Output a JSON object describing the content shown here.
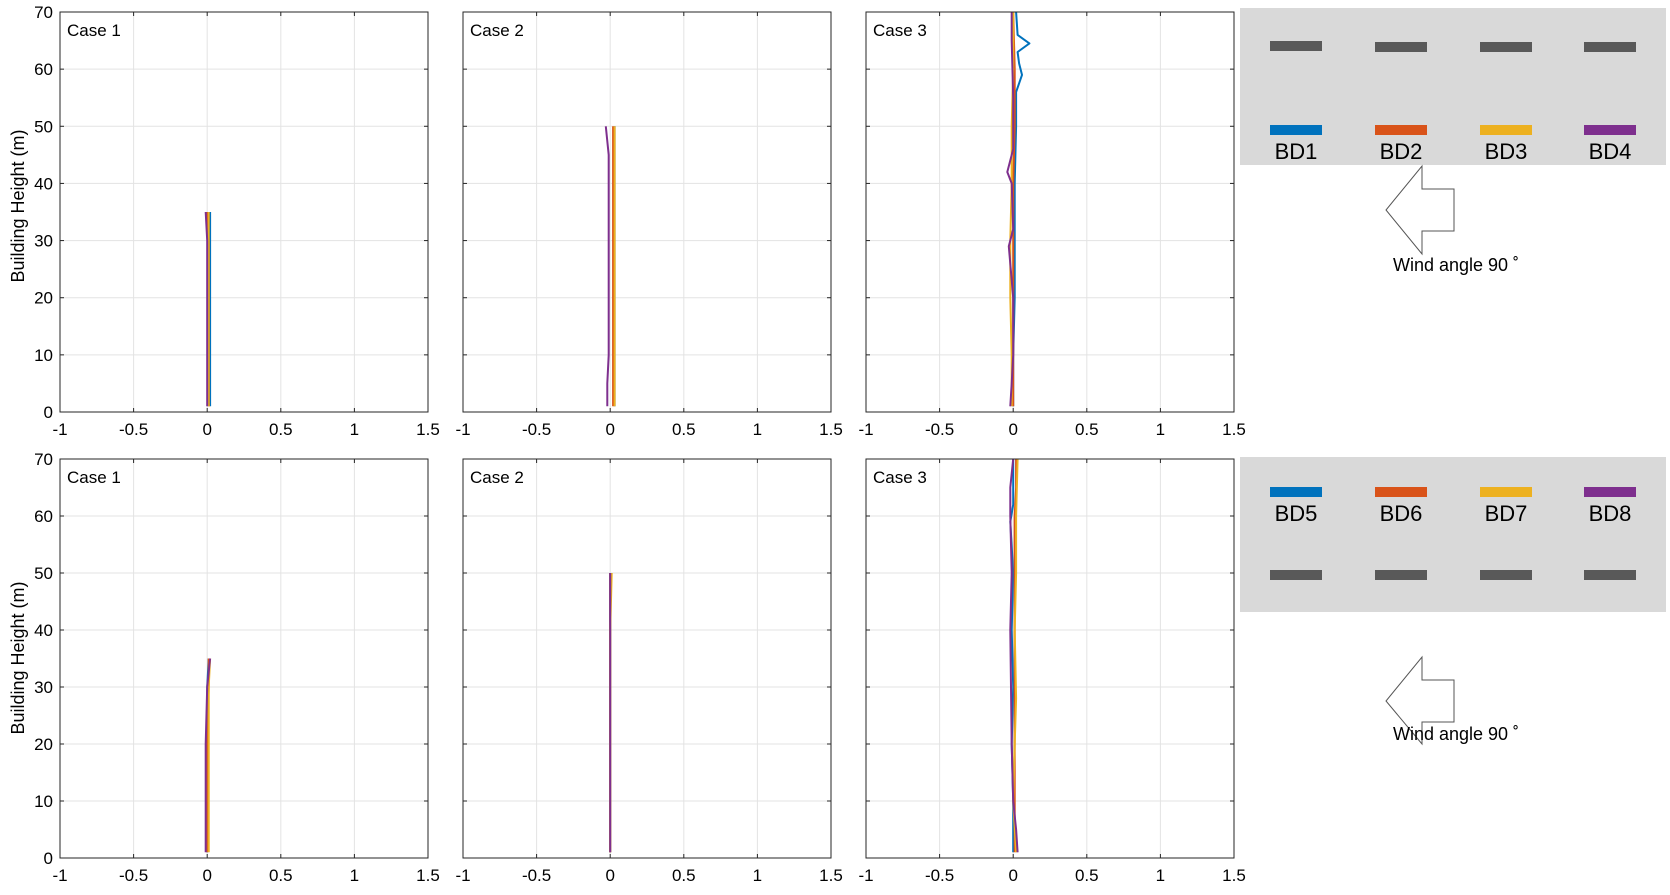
{
  "colors": {
    "bd1": "#0072BD",
    "bd2": "#D95319",
    "bd3": "#EDB120",
    "bd4": "#7E2F8E",
    "building_gray": "#595959",
    "panel_bg": "#d9d9d9"
  },
  "figure": {
    "ylabel": "Building Height (m)",
    "xticks": [
      "-1",
      "-0.5",
      "0",
      "0.5",
      "1",
      "1.5"
    ],
    "yticks": [
      "0",
      "10",
      "20",
      "30",
      "40",
      "50",
      "60",
      "70"
    ]
  },
  "rows": [
    {
      "diagram": {
        "labels": [
          "BD1",
          "BD2",
          "BD3",
          "BD4"
        ],
        "wind_text": "Wind angle 90 ˚"
      }
    },
    {
      "diagram": {
        "labels": [
          "BD5",
          "BD6",
          "BD7",
          "BD8"
        ],
        "wind_text": "Wind angle 90 ˚"
      }
    }
  ],
  "chart_data": [
    {
      "type": "line",
      "title": "Case 1",
      "ylabel": "Building Height (m)",
      "xlim": [
        -1,
        1.5
      ],
      "ylim": [
        0,
        70
      ],
      "grid": true,
      "series": [
        {
          "name": "BD1",
          "color": "#0072BD",
          "points": [
            [
              0.02,
              1
            ],
            [
              0.02,
              10
            ],
            [
              0.02,
              20
            ],
            [
              0.02,
              30
            ],
            [
              0.02,
              35
            ]
          ]
        },
        {
          "name": "BD2",
          "color": "#D95319",
          "points": [
            [
              0.01,
              1
            ],
            [
              0.01,
              10
            ],
            [
              0.01,
              20
            ],
            [
              0.01,
              30
            ],
            [
              0.0,
              35
            ]
          ]
        },
        {
          "name": "BD3",
          "color": "#EDB120",
          "points": [
            [
              0.01,
              1
            ],
            [
              0.01,
              10
            ],
            [
              0.01,
              20
            ],
            [
              0.01,
              30
            ],
            [
              0.01,
              35
            ]
          ]
        },
        {
          "name": "BD4",
          "color": "#7E2F8E",
          "points": [
            [
              0.0,
              1
            ],
            [
              0.0,
              10
            ],
            [
              0.0,
              20
            ],
            [
              0.0,
              30
            ],
            [
              -0.01,
              35
            ]
          ]
        }
      ]
    },
    {
      "type": "line",
      "title": "Case 2",
      "ylabel": "Building Height (m)",
      "xlim": [
        -1,
        1.5
      ],
      "ylim": [
        0,
        70
      ],
      "grid": true,
      "series": [
        {
          "name": "BD1",
          "color": "#0072BD",
          "points": [
            [
              0.03,
              1
            ],
            [
              0.03,
              10
            ],
            [
              0.03,
              20
            ],
            [
              0.03,
              30
            ],
            [
              0.03,
              40
            ],
            [
              0.03,
              50
            ]
          ]
        },
        {
          "name": "BD2",
          "color": "#D95319",
          "points": [
            [
              0.02,
              1
            ],
            [
              0.02,
              10
            ],
            [
              0.02,
              20
            ],
            [
              0.02,
              30
            ],
            [
              0.02,
              40
            ],
            [
              0.02,
              50
            ]
          ]
        },
        {
          "name": "BD3",
          "color": "#EDB120",
          "points": [
            [
              0.03,
              1
            ],
            [
              0.03,
              10
            ],
            [
              0.03,
              20
            ],
            [
              0.03,
              30
            ],
            [
              0.03,
              40
            ],
            [
              0.03,
              50
            ]
          ]
        },
        {
          "name": "BD4",
          "color": "#7E2F8E",
          "points": [
            [
              -0.02,
              1
            ],
            [
              -0.02,
              5
            ],
            [
              -0.01,
              10
            ],
            [
              -0.01,
              20
            ],
            [
              -0.01,
              30
            ],
            [
              -0.01,
              40
            ],
            [
              -0.01,
              45
            ],
            [
              -0.03,
              50
            ]
          ]
        }
      ]
    },
    {
      "type": "line",
      "title": "Case 3",
      "ylabel": "Building Height (m)",
      "xlim": [
        -1,
        1.5
      ],
      "ylim": [
        0,
        70
      ],
      "grid": true,
      "series": [
        {
          "name": "BD1",
          "color": "#0072BD",
          "points": [
            [
              0.0,
              1
            ],
            [
              0.0,
              10
            ],
            [
              0.01,
              20
            ],
            [
              0.01,
              30
            ],
            [
              0.01,
              40
            ],
            [
              0.02,
              50
            ],
            [
              0.02,
              56
            ],
            [
              0.06,
              59
            ],
            [
              0.04,
              61
            ],
            [
              0.03,
              63
            ],
            [
              0.11,
              64.5
            ],
            [
              0.03,
              66
            ],
            [
              0.02,
              70
            ]
          ]
        },
        {
          "name": "BD2",
          "color": "#D95319",
          "points": [
            [
              0.0,
              1
            ],
            [
              0.0,
              10
            ],
            [
              0.0,
              20
            ],
            [
              0.0,
              30
            ],
            [
              0.0,
              40
            ],
            [
              0.01,
              50
            ],
            [
              0.01,
              60
            ],
            [
              0.0,
              70
            ]
          ]
        },
        {
          "name": "BD3",
          "color": "#EDB120",
          "points": [
            [
              -0.01,
              1
            ],
            [
              -0.01,
              10
            ],
            [
              -0.02,
              20
            ],
            [
              -0.02,
              30
            ],
            [
              -0.01,
              40
            ],
            [
              -0.01,
              50
            ],
            [
              0.0,
              60
            ],
            [
              0.0,
              70
            ]
          ]
        },
        {
          "name": "BD4",
          "color": "#7E2F8E",
          "points": [
            [
              -0.02,
              1
            ],
            [
              -0.01,
              5
            ],
            [
              0.0,
              10
            ],
            [
              0.0,
              20
            ],
            [
              -0.03,
              29
            ],
            [
              0.0,
              32
            ],
            [
              -0.01,
              40
            ],
            [
              -0.04,
              42
            ],
            [
              0.0,
              46
            ],
            [
              0.0,
              55
            ],
            [
              -0.01,
              65
            ],
            [
              -0.01,
              70
            ]
          ]
        }
      ]
    },
    {
      "type": "line",
      "title": "Case 1",
      "ylabel": "Building Height (m)",
      "xlim": [
        -1,
        1.5
      ],
      "ylim": [
        0,
        70
      ],
      "grid": true,
      "series": [
        {
          "name": "BD5",
          "color": "#0072BD",
          "points": [
            [
              0.0,
              1
            ],
            [
              0.0,
              10
            ],
            [
              0.0,
              20
            ],
            [
              0.0,
              30
            ],
            [
              0.01,
              35
            ]
          ]
        },
        {
          "name": "BD6",
          "color": "#D95319",
          "points": [
            [
              0.0,
              1
            ],
            [
              0.0,
              10
            ],
            [
              0.0,
              20
            ],
            [
              0.01,
              30
            ],
            [
              0.01,
              35
            ]
          ]
        },
        {
          "name": "BD7",
          "color": "#EDB120",
          "points": [
            [
              0.01,
              1
            ],
            [
              0.01,
              10
            ],
            [
              0.01,
              20
            ],
            [
              0.01,
              30
            ],
            [
              0.02,
              35
            ]
          ]
        },
        {
          "name": "BD8",
          "color": "#7E2F8E",
          "points": [
            [
              -0.01,
              1
            ],
            [
              -0.01,
              10
            ],
            [
              -0.01,
              20
            ],
            [
              0.0,
              30
            ],
            [
              0.02,
              35
            ]
          ]
        }
      ]
    },
    {
      "type": "line",
      "title": "Case 2",
      "ylabel": "Building Height (m)",
      "xlim": [
        -1,
        1.5
      ],
      "ylim": [
        0,
        70
      ],
      "grid": true,
      "series": [
        {
          "name": "BD5",
          "color": "#0072BD",
          "points": [
            [
              0.0,
              1
            ],
            [
              0.0,
              10
            ],
            [
              0.0,
              20
            ],
            [
              0.0,
              30
            ],
            [
              0.0,
              40
            ],
            [
              0.0,
              50
            ]
          ]
        },
        {
          "name": "BD6",
          "color": "#D95319",
          "points": [
            [
              0.0,
              1
            ],
            [
              0.0,
              10
            ],
            [
              0.0,
              20
            ],
            [
              0.0,
              30
            ],
            [
              0.0,
              40
            ],
            [
              0.0,
              50
            ]
          ]
        },
        {
          "name": "BD7",
          "color": "#EDB120",
          "points": [
            [
              0.0,
              1
            ],
            [
              0.0,
              10
            ],
            [
              0.0,
              20
            ],
            [
              0.0,
              30
            ],
            [
              0.0,
              40
            ],
            [
              0.01,
              50
            ]
          ]
        },
        {
          "name": "BD8",
          "color": "#7E2F8E",
          "points": [
            [
              0.0,
              1
            ],
            [
              0.0,
              10
            ],
            [
              0.0,
              20
            ],
            [
              0.0,
              30
            ],
            [
              0.0,
              40
            ],
            [
              0.0,
              50
            ]
          ]
        }
      ]
    },
    {
      "type": "line",
      "title": "Case 3",
      "ylabel": "Building Height (m)",
      "xlim": [
        -1,
        1.5
      ],
      "ylim": [
        0,
        70
      ],
      "grid": true,
      "series": [
        {
          "name": "BD5",
          "color": "#0072BD",
          "points": [
            [
              0.0,
              1
            ],
            [
              0.0,
              10
            ],
            [
              -0.01,
              20
            ],
            [
              0.0,
              30
            ],
            [
              -0.01,
              40
            ],
            [
              0.0,
              50
            ],
            [
              -0.02,
              59
            ],
            [
              0.0,
              62
            ],
            [
              0.0,
              70
            ]
          ]
        },
        {
          "name": "BD6",
          "color": "#D95319",
          "points": [
            [
              0.01,
              1
            ],
            [
              0.01,
              10
            ],
            [
              0.01,
              20
            ],
            [
              0.01,
              30
            ],
            [
              0.01,
              40
            ],
            [
              0.01,
              50
            ],
            [
              0.01,
              60
            ],
            [
              0.02,
              65
            ],
            [
              0.02,
              70
            ]
          ]
        },
        {
          "name": "BD7",
          "color": "#EDB120",
          "points": [
            [
              0.02,
              1
            ],
            [
              0.0,
              10
            ],
            [
              0.01,
              20
            ],
            [
              0.02,
              28
            ],
            [
              0.01,
              40
            ],
            [
              0.02,
              50
            ],
            [
              0.02,
              60
            ],
            [
              0.03,
              70
            ]
          ]
        },
        {
          "name": "BD8",
          "color": "#7E2F8E",
          "points": [
            [
              0.03,
              1
            ],
            [
              0.02,
              5
            ],
            [
              0.0,
              10
            ],
            [
              -0.01,
              20
            ],
            [
              -0.02,
              40
            ],
            [
              -0.01,
              50
            ],
            [
              -0.02,
              60
            ],
            [
              -0.02,
              65
            ],
            [
              0.0,
              70
            ]
          ]
        }
      ]
    }
  ]
}
